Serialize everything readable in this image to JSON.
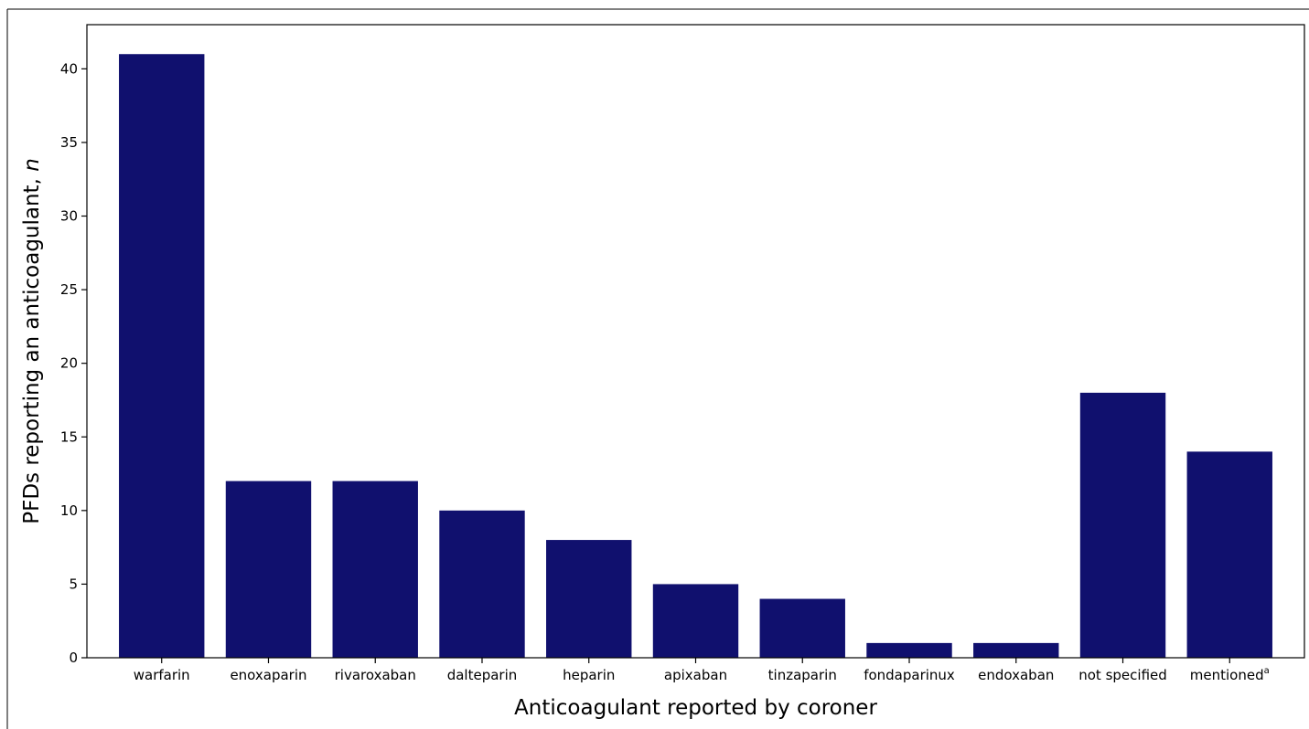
{
  "chart_data": {
    "type": "bar",
    "title": "",
    "xlabel": "Anticoagulant reported by coroner",
    "ylabel_main": "PFDs reporting an anticoagulant, ",
    "ylabel_italic": "n",
    "categories": [
      "warfarin",
      "enoxaparin",
      "rivaroxaban",
      "dalteparin",
      "heparin",
      "apixaban",
      "tinzaparin",
      "fondaparinux",
      "endoxaban",
      "not specified",
      "mentioned"
    ],
    "category_superscripts": [
      "",
      "",
      "",
      "",
      "",
      "",
      "",
      "",
      "",
      "",
      "a"
    ],
    "values": [
      41,
      12,
      12,
      10,
      8,
      5,
      4,
      1,
      1,
      18,
      14
    ],
    "ylim": [
      0,
      43
    ],
    "yticks": [
      0,
      5,
      10,
      15,
      20,
      25,
      30,
      35,
      40
    ],
    "bar_color": "#10106e",
    "grid": false,
    "legend": "none"
  }
}
